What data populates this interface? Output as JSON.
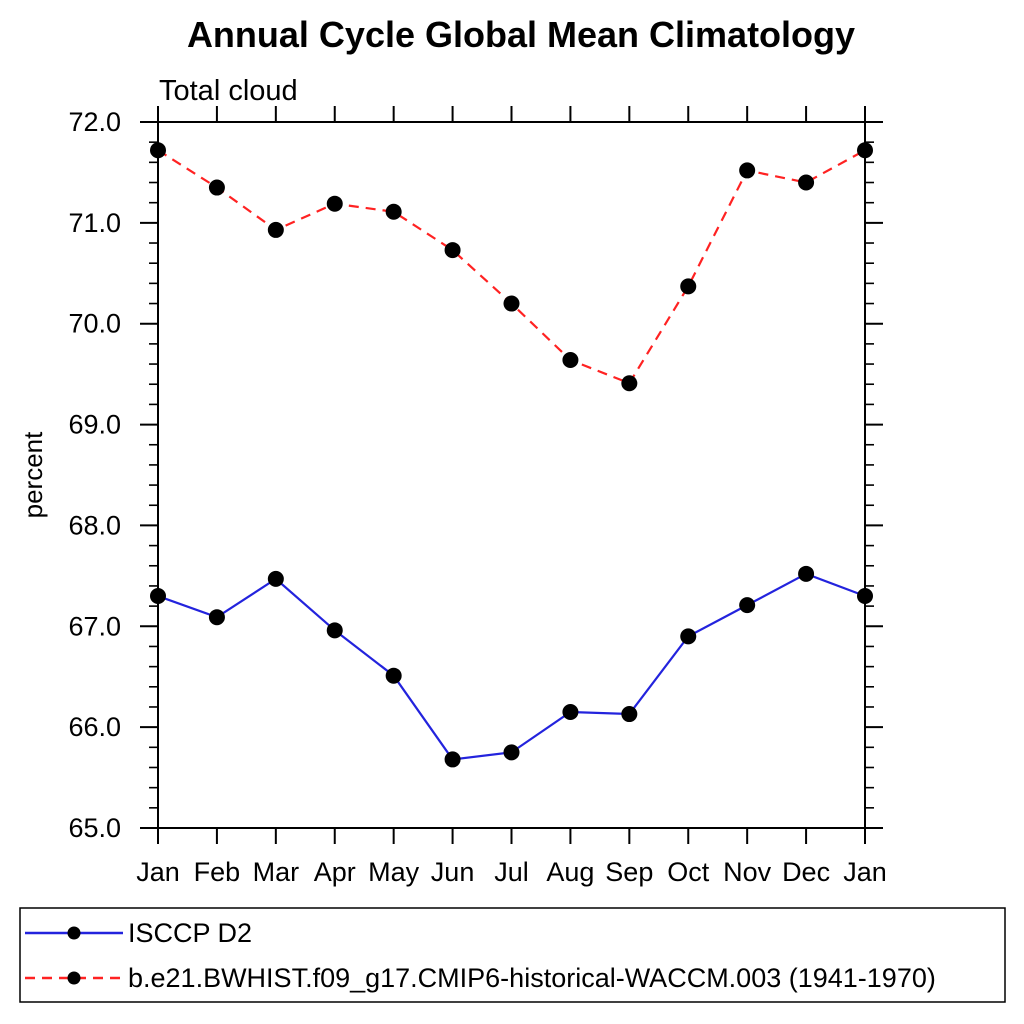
{
  "page": {
    "background": "#ffffff"
  },
  "chart_data": {
    "type": "line",
    "title": "Annual Cycle Global Mean Climatology",
    "subtitle": "Total cloud",
    "ylabel": "percent",
    "x_categories": [
      "Jan",
      "Feb",
      "Mar",
      "Apr",
      "May",
      "Jun",
      "Jul",
      "Aug",
      "Sep",
      "Oct",
      "Nov",
      "Dec",
      "Jan"
    ],
    "ylim": [
      65.0,
      72.0
    ],
    "ytick_major_interval": 1.0,
    "ytick_minor_interval": 0.2,
    "ytick_labels": [
      "65.0",
      "66.0",
      "67.0",
      "68.0",
      "69.0",
      "70.0",
      "71.0",
      "72.0"
    ],
    "grid": false,
    "axis_color": "#000000",
    "series": [
      {
        "name": "ISCCP D2",
        "line_color": "#2323dd",
        "line_style": "solid",
        "marker": "filled-circle",
        "marker_color": "#000000",
        "values": [
          67.3,
          67.09,
          67.47,
          66.96,
          66.51,
          65.68,
          65.75,
          66.15,
          66.13,
          66.9,
          67.21,
          67.52,
          67.3
        ]
      },
      {
        "name": "b.e21.BWHIST.f09_g17.CMIP6-historical-WACCM.003 (1941-1970)",
        "line_color": "#ff2222",
        "line_style": "dashed",
        "marker": "filled-circle",
        "marker_color": "#000000",
        "values": [
          71.72,
          71.35,
          70.93,
          71.19,
          71.11,
          70.73,
          70.2,
          69.64,
          69.41,
          70.37,
          71.52,
          71.4,
          71.72
        ]
      }
    ],
    "legend": {
      "position": "bottom"
    }
  }
}
